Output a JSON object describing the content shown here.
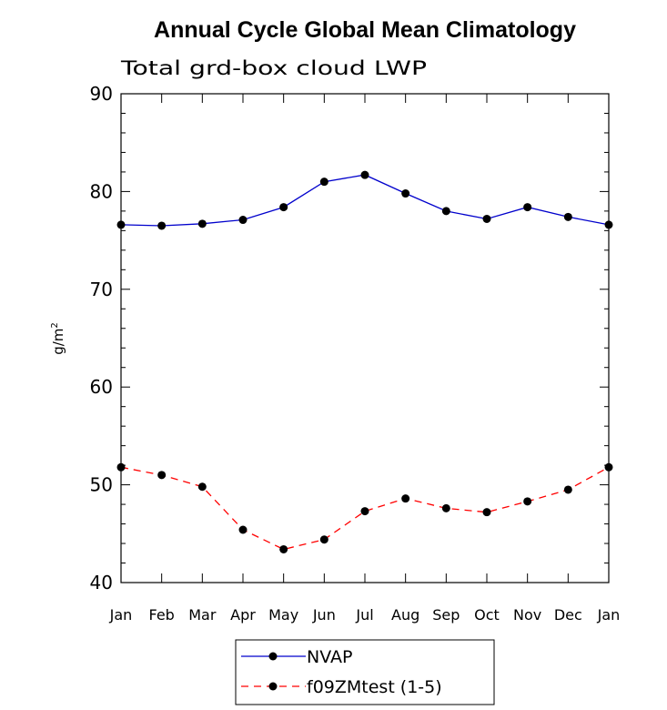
{
  "chart_data": {
    "type": "line",
    "title": "Annual Cycle Global Mean Climatology",
    "subtitle": "Total grd-box cloud LWP",
    "ylabel": "g/m",
    "ylabel_superscript": "2",
    "xlabel": "",
    "ylim": [
      40,
      90
    ],
    "yticks": [
      40,
      50,
      60,
      70,
      80,
      90
    ],
    "categories": [
      "Jan",
      "Feb",
      "Mar",
      "Apr",
      "May",
      "Jun",
      "Jul",
      "Aug",
      "Sep",
      "Oct",
      "Nov",
      "Dec",
      "Jan"
    ],
    "grid": false,
    "legend_position": "bottom-center",
    "series": [
      {
        "name": "NVAP",
        "color": "#0000cc",
        "line_style": "solid",
        "marker": "filled-circle",
        "values": [
          76.6,
          76.5,
          76.7,
          77.1,
          78.4,
          81.0,
          81.7,
          79.8,
          78.0,
          77.2,
          78.4,
          77.4,
          76.6
        ]
      },
      {
        "name": "f09ZMtest (1-5)",
        "color": "#ff0000",
        "line_style": "dashed",
        "marker": "filled-circle",
        "values": [
          51.8,
          51.0,
          49.8,
          45.4,
          43.4,
          44.4,
          47.3,
          48.6,
          47.6,
          47.2,
          48.3,
          49.5,
          51.8
        ]
      }
    ]
  }
}
